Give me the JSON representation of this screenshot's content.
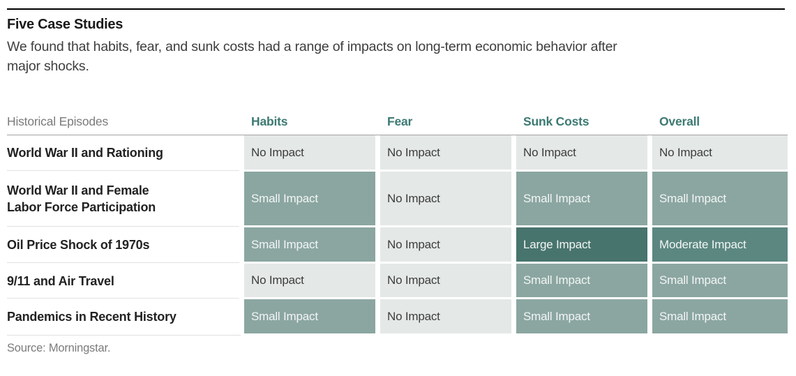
{
  "page": {
    "title": "Five Case Studies",
    "subtitle_line1": "We found that habits, fear, and sunk costs had a range of impacts on long-term economic behavior after",
    "subtitle_line2": "major shocks.",
    "source": "Source: Morningstar."
  },
  "colors": {
    "accent_teal": "#3c7a72",
    "top_rule": "#000000",
    "no_impact_bg": "#e4e8e7",
    "small_impact_bg": "#8ba6a1",
    "moderate_impact_bg": "#5b8780",
    "large_impact_bg": "#47746d"
  },
  "chart_data": {
    "type": "table",
    "title": "Five Case Studies",
    "row_header_label": "Historical Episodes",
    "columns": [
      "Habits",
      "Fear",
      "Sunk Costs",
      "Overall"
    ],
    "rows": [
      {
        "episode": "World War II and Rationing",
        "values": [
          "No Impact",
          "No Impact",
          "No Impact",
          "No Impact"
        ]
      },
      {
        "episode": "World War II and Female\nLabor Force Participation",
        "values": [
          "Small Impact",
          "No Impact",
          "Small Impact",
          "Small Impact"
        ]
      },
      {
        "episode": "Oil Price Shock of 1970s",
        "values": [
          "Small Impact",
          "No Impact",
          "Large Impact",
          "Moderate Impact"
        ]
      },
      {
        "episode": "9/11 and Air Travel",
        "values": [
          "No Impact",
          "No Impact",
          "Small Impact",
          "Small Impact"
        ]
      },
      {
        "episode": "Pandemics in Recent History",
        "values": [
          "Small Impact",
          "No Impact",
          "Small Impact",
          "Small Impact"
        ]
      }
    ],
    "legend": {
      "No Impact": {
        "bg": "#e4e8e7",
        "text": "#3d3d3d"
      },
      "Small Impact": {
        "bg": "#8ba6a1",
        "text": "#f3f6f5"
      },
      "Moderate Impact": {
        "bg": "#5b8780",
        "text": "#f3f6f5"
      },
      "Large Impact": {
        "bg": "#47746d",
        "text": "#f3f6f5"
      }
    }
  }
}
